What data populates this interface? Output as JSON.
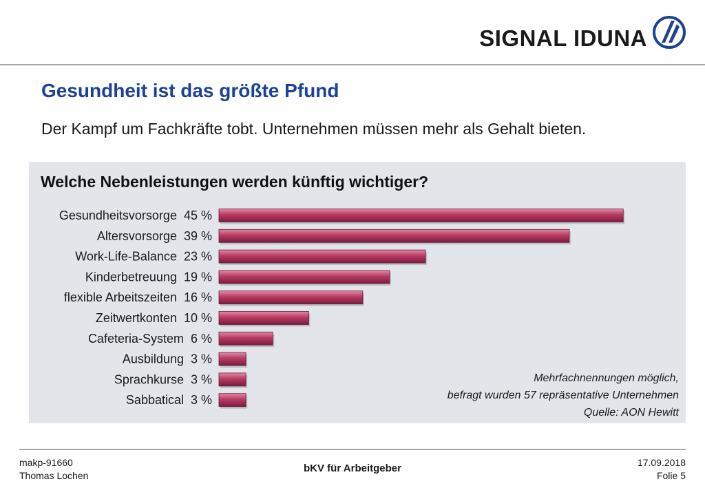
{
  "brand": {
    "name": "SIGNAL IDUNA",
    "color": "#1c4393"
  },
  "slide": {
    "title": "Gesundheit ist das größte Pfund",
    "subtitle": "Der Kampf um Fachkräfte tobt. Unternehmen müssen mehr als Gehalt bieten."
  },
  "chart_data": {
    "type": "bar",
    "orientation": "horizontal",
    "title": "Welche Nebenleistungen werden künftig wichtiger?",
    "categories": [
      "Gesundheitsvorsorge",
      "Altersvorsorge",
      "Work-Life-Balance",
      "Kinderbetreuung",
      "flexible Arbeitszeiten",
      "Zeitwertkonten",
      "Cafeteria-System",
      "Ausbildung",
      "Sprachkurse",
      "Sabbatical"
    ],
    "values": [
      45,
      39,
      23,
      19,
      16,
      10,
      6,
      3,
      3,
      3
    ],
    "labels": [
      "45 %",
      "39 %",
      "23 %",
      "19 %",
      "16 %",
      "10 %",
      "6 %",
      "3 %",
      "3 %",
      "3 %"
    ],
    "bar_color": "#b83a62",
    "grid": false,
    "legend": "none"
  },
  "notes": [
    "Mehrfachnennungen möglich,",
    "befragt wurden 57 repräsentative Unternehmen",
    "Quelle: AON Hewitt"
  ],
  "footer": {
    "code": "makp-91660",
    "author": "Thomas Lochen",
    "center": "bKV für Arbeitgeber",
    "date": "17.09.2018",
    "slide_no": "Folie 5"
  }
}
